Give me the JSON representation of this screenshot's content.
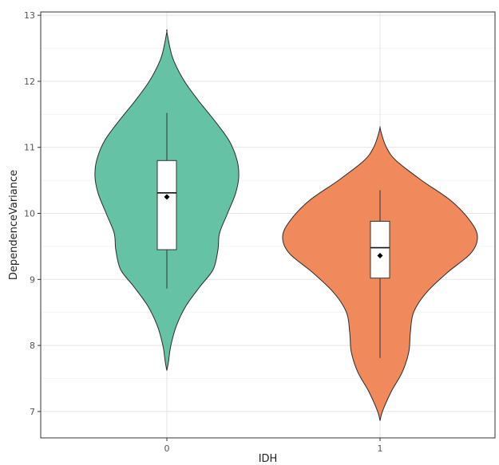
{
  "chart_data": {
    "type": "violin",
    "xlabel": "IDH",
    "ylabel": "DependenceVariance",
    "categories": [
      "0",
      "1"
    ],
    "ylim": [
      6.6,
      13.05
    ],
    "yticks": [
      7,
      8,
      9,
      10,
      11,
      12,
      13
    ],
    "grid": true,
    "legend": "none",
    "groups": [
      {
        "category": "0",
        "color": "#66c2a5",
        "box": {
          "q1": 9.45,
          "median": 10.31,
          "q3": 10.8,
          "whisker_low": 8.86,
          "whisker_high": 11.52
        },
        "mean": 10.25,
        "violin_min": 7.62,
        "violin_max": 12.75
      },
      {
        "category": "1",
        "color": "#f08a5d",
        "box": {
          "q1": 9.02,
          "median": 9.48,
          "q3": 9.88,
          "whisker_low": 7.81,
          "whisker_high": 10.35
        },
        "mean": 9.36,
        "violin_min": 6.86,
        "violin_max": 11.3
      }
    ]
  }
}
